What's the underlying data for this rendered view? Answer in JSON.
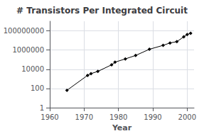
{
  "chart_data": {
    "type": "line",
    "title": "# Transistors Per Integrated Circuit",
    "xlabel": "Year",
    "x": [
      1965,
      1971,
      1972,
      1974,
      1978,
      1979,
      1982,
      1985,
      1989,
      1993,
      1995,
      1997,
      1999,
      2000,
      2001
    ],
    "values": [
      64,
      2300,
      3500,
      6000,
      29000,
      55000,
      120000,
      275000,
      1200000,
      3100000,
      5500000,
      7500000,
      24000000,
      42000000,
      55000000
    ],
    "xlim": [
      1960,
      2002
    ],
    "xticks": [
      1960,
      1970,
      1980,
      1990,
      2000
    ],
    "ylim": [
      1,
      1000000000
    ],
    "yticks": [
      1,
      100,
      10000,
      1000000,
      100000000
    ],
    "log": "y",
    "grid": true,
    "color": "#000000",
    "marker": "diamond"
  }
}
